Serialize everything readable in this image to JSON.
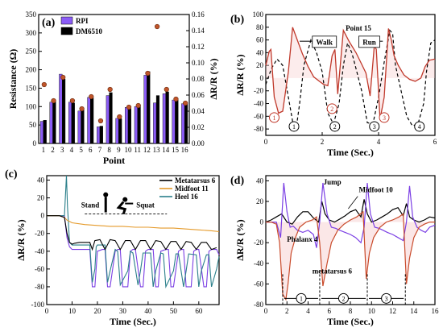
{
  "figure": {
    "panels": [
      "(a)",
      "(b)",
      "(c)",
      "(d)"
    ]
  },
  "chart_data": [
    {
      "id": "a",
      "panel_label": "(a)",
      "type": "bar",
      "xlabel": "Point",
      "ylabel": "Resistance (Ω)",
      "y2label": "ΔR/R (%)",
      "ylim": [
        0,
        350
      ],
      "y2lim": [
        0,
        0.16
      ],
      "yticks": [
        0,
        50,
        100,
        150,
        200,
        250,
        300,
        350
      ],
      "y2ticks": [
        0.0,
        0.02,
        0.04,
        0.06,
        0.08,
        0.1,
        0.12,
        0.14,
        0.16
      ],
      "categories": [
        "1",
        "2",
        "3",
        "4",
        "5",
        "6",
        "7",
        "8",
        "9",
        "10",
        "11",
        "12",
        "13",
        "14",
        "15",
        "16"
      ],
      "legend_position": "top-left",
      "series": [
        {
          "name": "RPI",
          "color": "#8b5cf6",
          "values": [
            60,
            112,
            188,
            112,
            88,
            125,
            45,
            130,
            68,
            98,
            100,
            185,
            110,
            135,
            118,
            108
          ]
        },
        {
          "name": "DM6510",
          "color": "#000000",
          "values": [
            63,
            115,
            175,
            110,
            92,
            124,
            47,
            138,
            67,
            95,
            103,
            195,
            130,
            140,
            120,
            110
          ]
        }
      ],
      "scatter_secondary": [
        0.073,
        0.053,
        0.082,
        0.053,
        0.043,
        0.058,
        0.028,
        0.067,
        0.033,
        0.045,
        0.047,
        0.087,
        0.145,
        0.067,
        0.055,
        0.05
      ]
    },
    {
      "id": "b",
      "panel_label": "(b)",
      "type": "line",
      "title": "Point 15",
      "xlabel": "Time (Sec.)",
      "ylabel": "ΔR/R (%)",
      "xlim": [
        0,
        6
      ],
      "ylim": [
        -90,
        100
      ],
      "xticks": [
        0,
        2,
        4,
        6
      ],
      "yticks": [
        -80,
        -60,
        -40,
        -20,
        0,
        20,
        40,
        60,
        80,
        100
      ],
      "annotations": [
        "Walk",
        "Run"
      ],
      "markers_red": [
        "1",
        "2",
        "3"
      ],
      "markers_black": [
        "1",
        "2",
        "3",
        "4"
      ],
      "series": [
        {
          "name": "",
          "style": "solid",
          "color": "#c0392b",
          "x": [
            0,
            0.12,
            0.18,
            0.3,
            0.45,
            0.6,
            0.8,
            0.95,
            1.1,
            1.3,
            1.5,
            1.7,
            1.9,
            2.05,
            2.2,
            2.35,
            2.45,
            2.55,
            2.75,
            2.95,
            3.2,
            3.4,
            3.55,
            3.7,
            3.85,
            3.92,
            4.05,
            4.2,
            4.35,
            4.45,
            4.55,
            4.7,
            4.9,
            5.1,
            5.3,
            5.5,
            5.65,
            5.8,
            6.0
          ],
          "y": [
            20,
            42,
            45,
            -30,
            -55,
            -52,
            10,
            80,
            62,
            38,
            18,
            2,
            -5,
            -10,
            -12,
            35,
            45,
            -25,
            75,
            58,
            40,
            22,
            8,
            -28,
            52,
            45,
            -65,
            -30,
            78,
            60,
            35,
            20,
            5,
            -2,
            -5,
            0,
            18,
            28,
            30
          ]
        },
        {
          "name": "",
          "style": "dashed",
          "color": "#000000",
          "x": [
            0,
            0.2,
            0.4,
            0.6,
            0.8,
            0.95,
            1.1,
            1.2,
            1.35,
            1.6,
            1.8,
            2.0,
            2.2,
            2.4,
            2.6,
            2.75,
            2.9,
            3.05,
            3.2,
            3.4,
            3.6,
            3.8,
            4.0,
            4.2,
            4.4,
            4.5,
            4.6,
            4.8,
            5.0,
            5.2,
            5.4,
            5.6,
            5.7,
            5.85,
            6.0
          ],
          "y": [
            -10,
            15,
            30,
            20,
            -30,
            -68,
            -72,
            -40,
            20,
            60,
            40,
            10,
            -55,
            -72,
            -40,
            20,
            55,
            40,
            15,
            -20,
            -70,
            -72,
            -30,
            25,
            75,
            70,
            20,
            -20,
            -60,
            -75,
            -72,
            -40,
            10,
            55,
            60
          ]
        }
      ]
    },
    {
      "id": "c",
      "panel_label": "(c)",
      "type": "line",
      "xlabel": "Time (Sec.)",
      "ylabel": "ΔR/R (%)",
      "xlim": [
        0,
        68
      ],
      "ylim": [
        -100,
        45
      ],
      "xticks": [
        0,
        10,
        20,
        30,
        40,
        50,
        60
      ],
      "yticks": [
        -100,
        -80,
        -60,
        -40,
        -20,
        0,
        20,
        40
      ],
      "legend_position": "top-right",
      "inset_labels": [
        "Stand",
        "Squat"
      ],
      "series": [
        {
          "name": "Metatarsus 6",
          "color": "#000000",
          "x": [
            0,
            5,
            7,
            8,
            9,
            10,
            11,
            13,
            15,
            17,
            18,
            19,
            21,
            23,
            25,
            27,
            29,
            31,
            33,
            35,
            37,
            39,
            41,
            43,
            45,
            47,
            49,
            51,
            53,
            55,
            57,
            59,
            61,
            63,
            65,
            67
          ],
          "y": [
            0,
            0,
            -2,
            -20,
            -30,
            -32,
            -31,
            -30,
            -30,
            -30,
            -38,
            -28,
            -27,
            -38,
            -27,
            -28,
            -38,
            -28,
            -28,
            -38,
            -28,
            -28,
            -38,
            -28,
            -29,
            -38,
            -29,
            -29,
            -38,
            -29,
            -30,
            -38,
            -30,
            -30,
            -38,
            -36
          ]
        },
        {
          "name": "Midfoot 11",
          "color": "#e59a2a",
          "x": [
            0,
            5,
            7,
            8,
            10,
            15,
            20,
            25,
            30,
            35,
            40,
            45,
            50,
            55,
            60,
            65,
            68
          ],
          "y": [
            0,
            0,
            -2,
            -5,
            -8,
            -10,
            -11,
            -12,
            -12,
            -13,
            -13,
            -14,
            -14,
            -15,
            -16,
            -17,
            -18
          ]
        },
        {
          "name": "Heel 16",
          "color": "#2a7f8a",
          "x": [
            0,
            5,
            7,
            7.8,
            8.2,
            8.6,
            9,
            10,
            12,
            15,
            17,
            18,
            19,
            19.5,
            20,
            23,
            24,
            25,
            27,
            28,
            29,
            32,
            33,
            34,
            36,
            37,
            38,
            41,
            42,
            43,
            45,
            46,
            47,
            50,
            51,
            52,
            54,
            55,
            56,
            59,
            60,
            61,
            63,
            64,
            65,
            67,
            68
          ],
          "y": [
            0,
            0,
            0,
            45,
            10,
            -10,
            -30,
            -33,
            -33,
            -33,
            -33,
            -75,
            -60,
            -35,
            -33,
            -33,
            -75,
            -62,
            -38,
            -40,
            -78,
            -62,
            -40,
            -42,
            -78,
            -62,
            -42,
            -42,
            -80,
            -62,
            -42,
            -43,
            -80,
            -62,
            -43,
            -43,
            -80,
            -62,
            -43,
            -44,
            -80,
            -62,
            -44,
            -44,
            -80,
            -60,
            -46
          ]
        },
        {
          "name": "",
          "color": "#7b3fe4",
          "x": [
            0,
            5,
            7,
            8,
            9,
            10,
            12,
            15,
            17,
            18,
            19,
            20,
            22,
            23,
            24,
            25,
            27,
            28,
            29,
            30,
            32,
            33,
            34,
            35,
            37,
            38,
            39,
            40,
            42,
            43,
            44,
            45,
            47,
            48,
            49,
            50,
            52,
            53,
            54,
            55,
            57,
            58,
            59,
            60,
            62,
            63,
            64,
            65,
            67,
            68
          ],
          "y": [
            0,
            0,
            0,
            -25,
            -35,
            -38,
            -38,
            -38,
            -38,
            -80,
            -80,
            -40,
            -38,
            -38,
            -80,
            -80,
            -40,
            -38,
            -38,
            -80,
            -80,
            -40,
            -38,
            -38,
            -80,
            -80,
            -40,
            -38,
            -38,
            -80,
            -80,
            -40,
            -38,
            -38,
            -80,
            -80,
            -40,
            -38,
            -38,
            -80,
            -80,
            -40,
            -38,
            -38,
            -80,
            -80,
            -40,
            -38,
            -38,
            -44
          ]
        }
      ]
    },
    {
      "id": "d",
      "panel_label": "(d)",
      "type": "line",
      "title": "Jump",
      "xlabel": "Time (Sec.)",
      "ylabel": "ΔR/R (%)",
      "xlim": [
        0,
        16
      ],
      "ylim": [
        -80,
        45
      ],
      "xticks": [
        0,
        2,
        4,
        6,
        8,
        10,
        12,
        14,
        16
      ],
      "yticks": [
        -80,
        -60,
        -40,
        -20,
        0,
        20,
        40
      ],
      "annotations": [
        "Midfoot 10",
        "Phalanx 4",
        "metatarsus 6"
      ],
      "intervals": [
        "1",
        "2",
        "3"
      ],
      "series": [
        {
          "name": "Midfoot 10",
          "color": "#000000",
          "x": [
            0,
            0.5,
            1,
            1.5,
            2.0,
            2.5,
            3.0,
            3.5,
            4,
            4.5,
            5,
            5.3,
            5.6,
            6,
            6.5,
            7,
            7.5,
            8,
            8.5,
            9,
            9.3,
            9.6,
            10,
            10.5,
            11,
            11.5,
            12,
            12.5,
            13,
            13.3,
            13.6,
            14,
            14.5,
            15,
            15.5,
            16
          ],
          "y": [
            0,
            2,
            5,
            8,
            0,
            -2,
            5,
            10,
            10,
            4,
            0,
            20,
            8,
            2,
            0,
            3,
            6,
            10,
            12,
            5,
            22,
            8,
            0,
            2,
            5,
            8,
            12,
            14,
            6,
            18,
            5,
            2,
            0,
            2,
            5,
            4
          ]
        },
        {
          "name": "Phalanx 4",
          "color": "#7b3fe4",
          "x": [
            0,
            0.5,
            1,
            1.4,
            1.7,
            2.0,
            2.3,
            2.6,
            3.0,
            3.5,
            4,
            4.5,
            4.8,
            5.1,
            5.4,
            5.8,
            6.2,
            6.6,
            7,
            7.5,
            8,
            8.5,
            9,
            9.3,
            9.6,
            9.9,
            10.3,
            10.7,
            11.1,
            11.5,
            12,
            12.5,
            13,
            13.3,
            13.6,
            13.9,
            14.3,
            14.7,
            15.1,
            15.5,
            16
          ],
          "y": [
            0,
            0,
            0,
            -15,
            38,
            10,
            -5,
            -4,
            -8,
            -10,
            -8,
            -12,
            -25,
            0,
            38,
            8,
            -5,
            -6,
            -8,
            -10,
            -12,
            -15,
            -20,
            -5,
            38,
            8,
            -5,
            -6,
            -8,
            -10,
            -12,
            -15,
            -18,
            0,
            35,
            5,
            -5,
            -8,
            -10,
            -5,
            -3
          ]
        },
        {
          "name": "metatarsus 6",
          "color": "#c94a2a",
          "x": [
            0,
            0.5,
            1,
            1.3,
            1.6,
            1.9,
            2.1,
            2.4,
            2.8,
            3.2,
            3.8,
            4.4,
            4.8,
            5.1,
            5.4,
            5.8,
            6.2,
            6.8,
            7.4,
            8,
            8.6,
            9.2,
            9.5,
            9.8,
            10.2,
            10.8,
            11.4,
            12,
            12.6,
            13.0,
            13.3,
            13.6,
            14,
            14.5,
            15,
            15.5,
            16
          ],
          "y": [
            0,
            0,
            -2,
            -20,
            -70,
            -75,
            -60,
            -30,
            -15,
            -5,
            0,
            2,
            5,
            -20,
            -62,
            -40,
            -20,
            -8,
            -2,
            2,
            5,
            10,
            -55,
            -30,
            -15,
            -5,
            0,
            2,
            5,
            8,
            -60,
            -35,
            -15,
            -5,
            -2,
            0,
            0
          ]
        }
      ]
    }
  ]
}
